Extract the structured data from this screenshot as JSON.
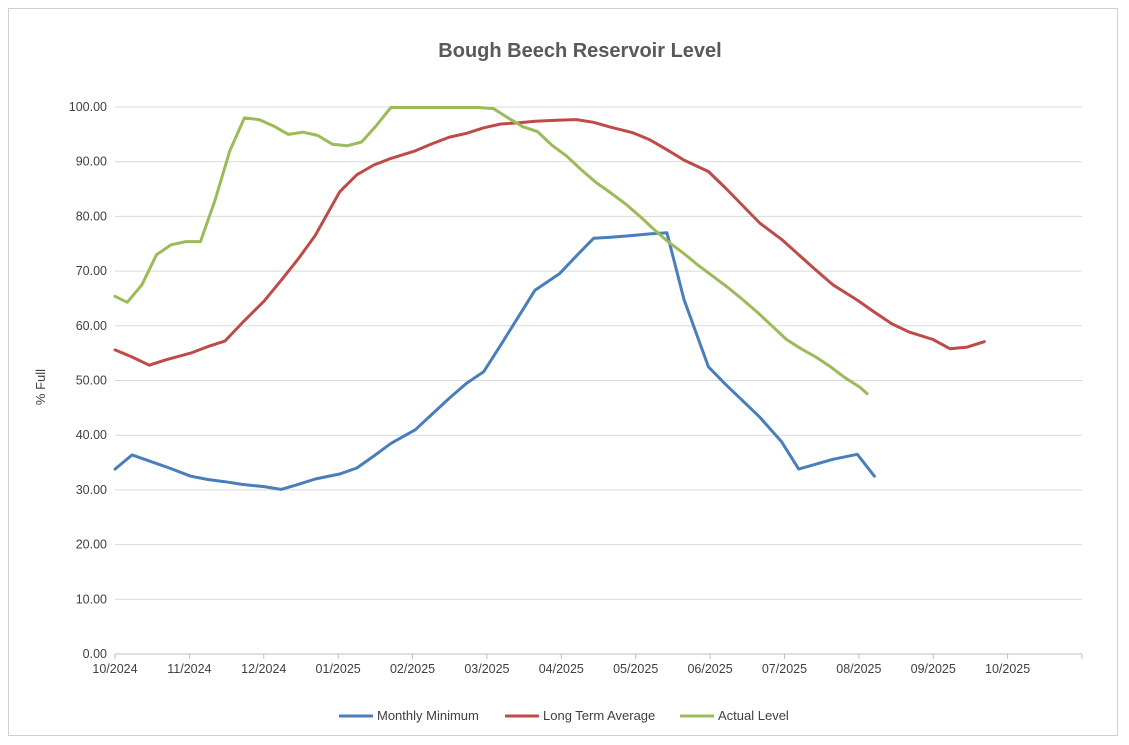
{
  "chart_data": {
    "type": "line",
    "title": "Bough Beech Reservoir Level",
    "xlabel": "",
    "ylabel": "% Full",
    "ylim": [
      0,
      100
    ],
    "yticks": [
      "0.00",
      "10.00",
      "20.00",
      "30.00",
      "40.00",
      "50.00",
      "60.00",
      "70.00",
      "80.00",
      "90.00",
      "100.00"
    ],
    "xticks": [
      "10/2024",
      "11/2024",
      "12/2024",
      "01/2025",
      "02/2025",
      "03/2025",
      "04/2025",
      "05/2025",
      "06/2025",
      "07/2025",
      "08/2025",
      "09/2025",
      "10/2025"
    ],
    "x_range": [
      "2024-10-01",
      "2025-11-01"
    ],
    "grid": true,
    "legend_position": "bottom",
    "series": [
      {
        "name": "Monthly Minimum",
        "color": "#4a7ebb",
        "points": [
          [
            "2024-10-01",
            33.8
          ],
          [
            "2024-10-08",
            36.4
          ],
          [
            "2024-10-15",
            35.3
          ],
          [
            "2024-10-22",
            34.2
          ],
          [
            "2024-11-01",
            32.5
          ],
          [
            "2024-11-08",
            31.9
          ],
          [
            "2024-11-15",
            31.5
          ],
          [
            "2024-11-22",
            31.0
          ],
          [
            "2024-12-01",
            30.6
          ],
          [
            "2024-12-08",
            30.1
          ],
          [
            "2024-12-15",
            31.0
          ],
          [
            "2024-12-22",
            32.0
          ],
          [
            "2025-01-01",
            32.9
          ],
          [
            "2025-01-08",
            34.0
          ],
          [
            "2025-01-15",
            36.2
          ],
          [
            "2025-01-22",
            38.5
          ],
          [
            "2025-02-01",
            41.0
          ],
          [
            "2025-02-08",
            43.9
          ],
          [
            "2025-02-15",
            46.8
          ],
          [
            "2025-02-22",
            49.5
          ],
          [
            "2025-03-01",
            51.6
          ],
          [
            "2025-03-08",
            56.5
          ],
          [
            "2025-03-15",
            61.5
          ],
          [
            "2025-03-22",
            66.5
          ],
          [
            "2025-04-01",
            69.5
          ],
          [
            "2025-04-08",
            72.8
          ],
          [
            "2025-04-15",
            76.0
          ],
          [
            "2025-04-22",
            76.2
          ],
          [
            "2025-05-01",
            76.5
          ],
          [
            "2025-05-08",
            76.8
          ],
          [
            "2025-05-15",
            77.0
          ],
          [
            "2025-05-22",
            64.8
          ],
          [
            "2025-06-01",
            52.5
          ],
          [
            "2025-06-08",
            49.3
          ],
          [
            "2025-06-15",
            46.3
          ],
          [
            "2025-06-22",
            43.3
          ],
          [
            "2025-07-01",
            38.8
          ],
          [
            "2025-07-08",
            33.8
          ],
          [
            "2025-07-15",
            34.7
          ],
          [
            "2025-07-22",
            35.6
          ],
          [
            "2025-08-01",
            36.5
          ],
          [
            "2025-08-08",
            32.5
          ]
        ]
      },
      {
        "name": "Long Term Average",
        "color": "#be4b48",
        "points": [
          [
            "2024-10-01",
            55.6
          ],
          [
            "2024-10-08",
            54.3
          ],
          [
            "2024-10-15",
            52.8
          ],
          [
            "2024-10-22",
            53.8
          ],
          [
            "2024-11-01",
            55.0
          ],
          [
            "2024-11-08",
            56.2
          ],
          [
            "2024-11-15",
            57.2
          ],
          [
            "2024-11-22",
            60.5
          ],
          [
            "2024-12-01",
            64.5
          ],
          [
            "2024-12-08",
            68.3
          ],
          [
            "2024-12-15",
            72.2
          ],
          [
            "2024-12-22",
            76.5
          ],
          [
            "2025-01-01",
            84.5
          ],
          [
            "2025-01-08",
            87.6
          ],
          [
            "2025-01-15",
            89.4
          ],
          [
            "2025-01-22",
            90.6
          ],
          [
            "2025-02-01",
            92.0
          ],
          [
            "2025-02-08",
            93.3
          ],
          [
            "2025-02-15",
            94.5
          ],
          [
            "2025-02-22",
            95.2
          ],
          [
            "2025-03-01",
            96.2
          ],
          [
            "2025-03-08",
            96.9
          ],
          [
            "2025-03-15",
            97.1
          ],
          [
            "2025-03-22",
            97.4
          ],
          [
            "2025-04-01",
            97.6
          ],
          [
            "2025-04-08",
            97.7
          ],
          [
            "2025-04-15",
            97.2
          ],
          [
            "2025-04-22",
            96.3
          ],
          [
            "2025-05-01",
            95.3
          ],
          [
            "2025-05-08",
            94.0
          ],
          [
            "2025-05-15",
            92.2
          ],
          [
            "2025-05-22",
            90.3
          ],
          [
            "2025-06-01",
            88.2
          ],
          [
            "2025-06-08",
            85.2
          ],
          [
            "2025-06-15",
            82.0
          ],
          [
            "2025-06-22",
            78.8
          ],
          [
            "2025-07-01",
            75.8
          ],
          [
            "2025-07-08",
            73.0
          ],
          [
            "2025-07-15",
            70.2
          ],
          [
            "2025-07-22",
            67.5
          ],
          [
            "2025-08-01",
            64.7
          ],
          [
            "2025-08-08",
            62.5
          ],
          [
            "2025-08-15",
            60.4
          ],
          [
            "2025-08-22",
            58.9
          ],
          [
            "2025-09-01",
            57.5
          ],
          [
            "2025-09-08",
            55.8
          ],
          [
            "2025-09-15",
            56.1
          ],
          [
            "2025-09-22",
            57.1
          ]
        ]
      },
      {
        "name": "Actual Level",
        "color": "#9bbb59",
        "points": [
          [
            "2024-10-01",
            65.4
          ],
          [
            "2024-10-06",
            64.3
          ],
          [
            "2024-10-12",
            67.5
          ],
          [
            "2024-10-18",
            73.0
          ],
          [
            "2024-10-24",
            74.8
          ],
          [
            "2024-10-30",
            75.4
          ],
          [
            "2024-11-05",
            75.4
          ],
          [
            "2024-11-11",
            83.0
          ],
          [
            "2024-11-17",
            92.0
          ],
          [
            "2024-11-23",
            98.0
          ],
          [
            "2024-11-29",
            97.7
          ],
          [
            "2024-12-05",
            96.5
          ],
          [
            "2024-12-11",
            95.0
          ],
          [
            "2024-12-17",
            95.4
          ],
          [
            "2024-12-23",
            94.8
          ],
          [
            "2024-12-29",
            93.2
          ],
          [
            "2025-01-04",
            92.9
          ],
          [
            "2025-01-10",
            93.6
          ],
          [
            "2025-01-16",
            96.6
          ],
          [
            "2025-01-22",
            99.9
          ],
          [
            "2025-01-28",
            99.9
          ],
          [
            "2025-02-03",
            99.9
          ],
          [
            "2025-02-09",
            99.9
          ],
          [
            "2025-02-15",
            99.9
          ],
          [
            "2025-02-21",
            99.9
          ],
          [
            "2025-02-27",
            99.9
          ],
          [
            "2025-03-05",
            99.7
          ],
          [
            "2025-03-11",
            98.0
          ],
          [
            "2025-03-17",
            96.4
          ],
          [
            "2025-03-23",
            95.5
          ],
          [
            "2025-03-29",
            93.0
          ],
          [
            "2025-04-04",
            91.0
          ],
          [
            "2025-04-10",
            88.5
          ],
          [
            "2025-04-16",
            86.2
          ],
          [
            "2025-04-22",
            84.3
          ],
          [
            "2025-04-28",
            82.3
          ],
          [
            "2025-05-04",
            80.0
          ],
          [
            "2025-05-10",
            77.5
          ],
          [
            "2025-05-16",
            75.2
          ],
          [
            "2025-05-22",
            73.2
          ],
          [
            "2025-05-28",
            71.0
          ],
          [
            "2025-06-03",
            69.0
          ],
          [
            "2025-06-09",
            67.0
          ],
          [
            "2025-06-15",
            64.8
          ],
          [
            "2025-06-21",
            62.5
          ],
          [
            "2025-06-27",
            60.0
          ],
          [
            "2025-07-03",
            57.5
          ],
          [
            "2025-07-09",
            55.8
          ],
          [
            "2025-07-15",
            54.3
          ],
          [
            "2025-07-21",
            52.5
          ],
          [
            "2025-07-27",
            50.5
          ],
          [
            "2025-08-02",
            48.8
          ],
          [
            "2025-08-05",
            47.6
          ]
        ]
      }
    ]
  }
}
